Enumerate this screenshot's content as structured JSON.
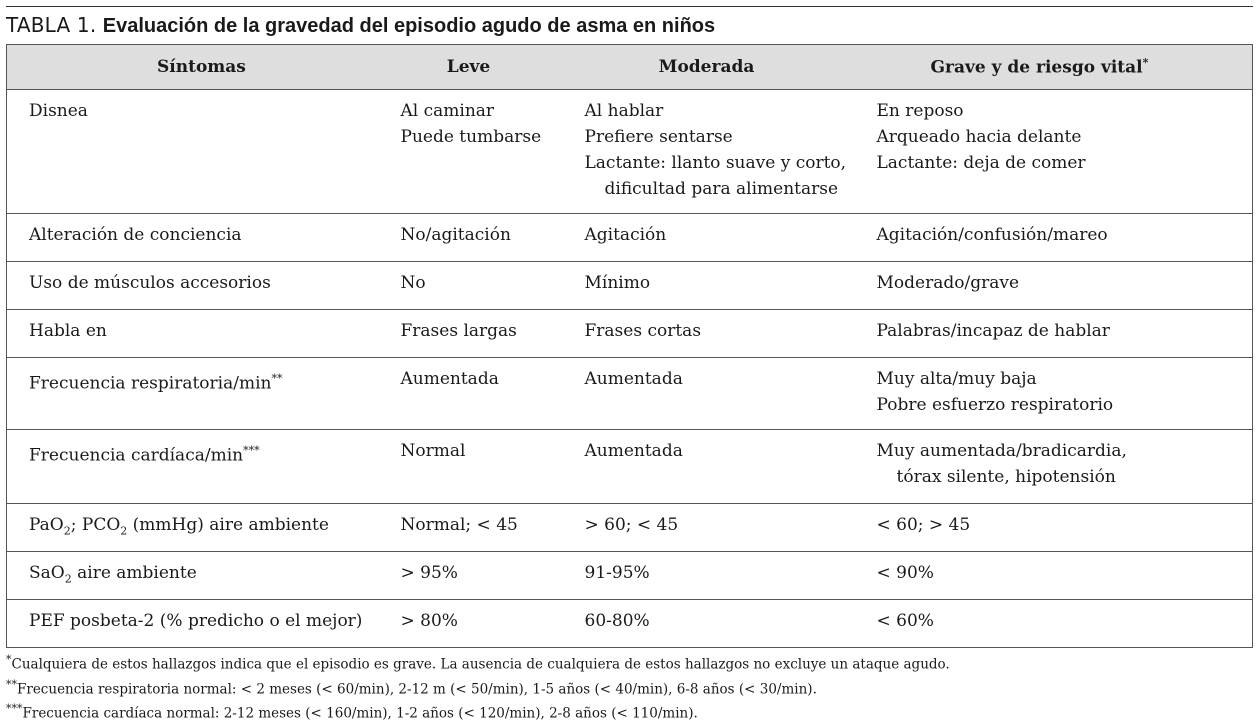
{
  "caption": {
    "number": "TABLA 1.",
    "title": "Evaluación de la gravedad del episodio agudo de asma en niños"
  },
  "table": {
    "headers": [
      "Síntomas",
      "Leve",
      "Moderada",
      "Grave y de riesgo vital"
    ],
    "header_mark": "*",
    "rows": [
      {
        "sintoma": "Disnea",
        "leve": [
          "Al caminar",
          "Puede tumbarse"
        ],
        "moderada": [
          "Al hablar",
          "Prefiere sentarse",
          "Lactante: llanto suave y corto,",
          "dificultad para alimentarse"
        ],
        "grave": [
          "En reposo",
          "Arqueado hacia delante",
          "Lactante: deja de comer"
        ]
      },
      {
        "sintoma": "Alteración de conciencia",
        "leve": [
          "No/agitación"
        ],
        "moderada": [
          "Agitación"
        ],
        "grave": [
          "Agitación/confusión/mareo"
        ]
      },
      {
        "sintoma": "Uso de músculos accesorios",
        "leve": [
          "No"
        ],
        "moderada": [
          "Mínimo"
        ],
        "grave": [
          "Moderado/grave"
        ]
      },
      {
        "sintoma": "Habla en",
        "leve": [
          "Frases largas"
        ],
        "moderada": [
          "Frases cortas"
        ],
        "grave": [
          "Palabras/incapaz de hablar"
        ]
      },
      {
        "sintoma": "Frecuencia respiratoria/min",
        "sintoma_mark": "**",
        "leve": [
          "Aumentada"
        ],
        "moderada": [
          "Aumentada"
        ],
        "grave": [
          "Muy alta/muy baja",
          "Pobre esfuerzo respiratorio"
        ]
      },
      {
        "sintoma": "Frecuencia cardíaca/min",
        "sintoma_mark": "***",
        "leve": [
          "Normal"
        ],
        "moderada": [
          "Aumentada"
        ],
        "grave": [
          "Muy aumentada/bradicardia,",
          "tórax silente, hipotensión"
        ]
      },
      {
        "sintoma_parts": [
          "PaO",
          "2",
          "; PCO",
          "2",
          " (mmHg) aire ambiente"
        ],
        "leve": [
          "Normal; < 45"
        ],
        "moderada": [
          "> 60; < 45"
        ],
        "grave": [
          "< 60; > 45"
        ]
      },
      {
        "sintoma_parts": [
          "SaO",
          "2",
          " aire ambiente"
        ],
        "leve": [
          "> 95%"
        ],
        "moderada": [
          "91-95%"
        ],
        "grave": [
          "< 90%"
        ]
      },
      {
        "sintoma": "PEF posbeta-2 (% predicho o el mejor)",
        "leve": [
          "> 80%"
        ],
        "moderada": [
          "60-80%"
        ],
        "grave": [
          "< 60%"
        ]
      }
    ]
  },
  "footnotes": [
    {
      "mark": "*",
      "text": "Cualquiera de estos hallazgos indica que el episodio es grave. La ausencia de cualquiera de estos hallazgos no excluye un ataque agudo."
    },
    {
      "mark": "**",
      "text": "Frecuencia respiratoria normal: < 2 meses (< 60/min), 2-12 m (< 50/min), 1-5 años (< 40/min), 6-8 años (< 30/min)."
    },
    {
      "mark": "***",
      "text": "Frecuencia cardíaca normal: 2-12 meses (< 160/min), 1-2 años (< 120/min), 2-8 años (< 110/min)."
    }
  ]
}
